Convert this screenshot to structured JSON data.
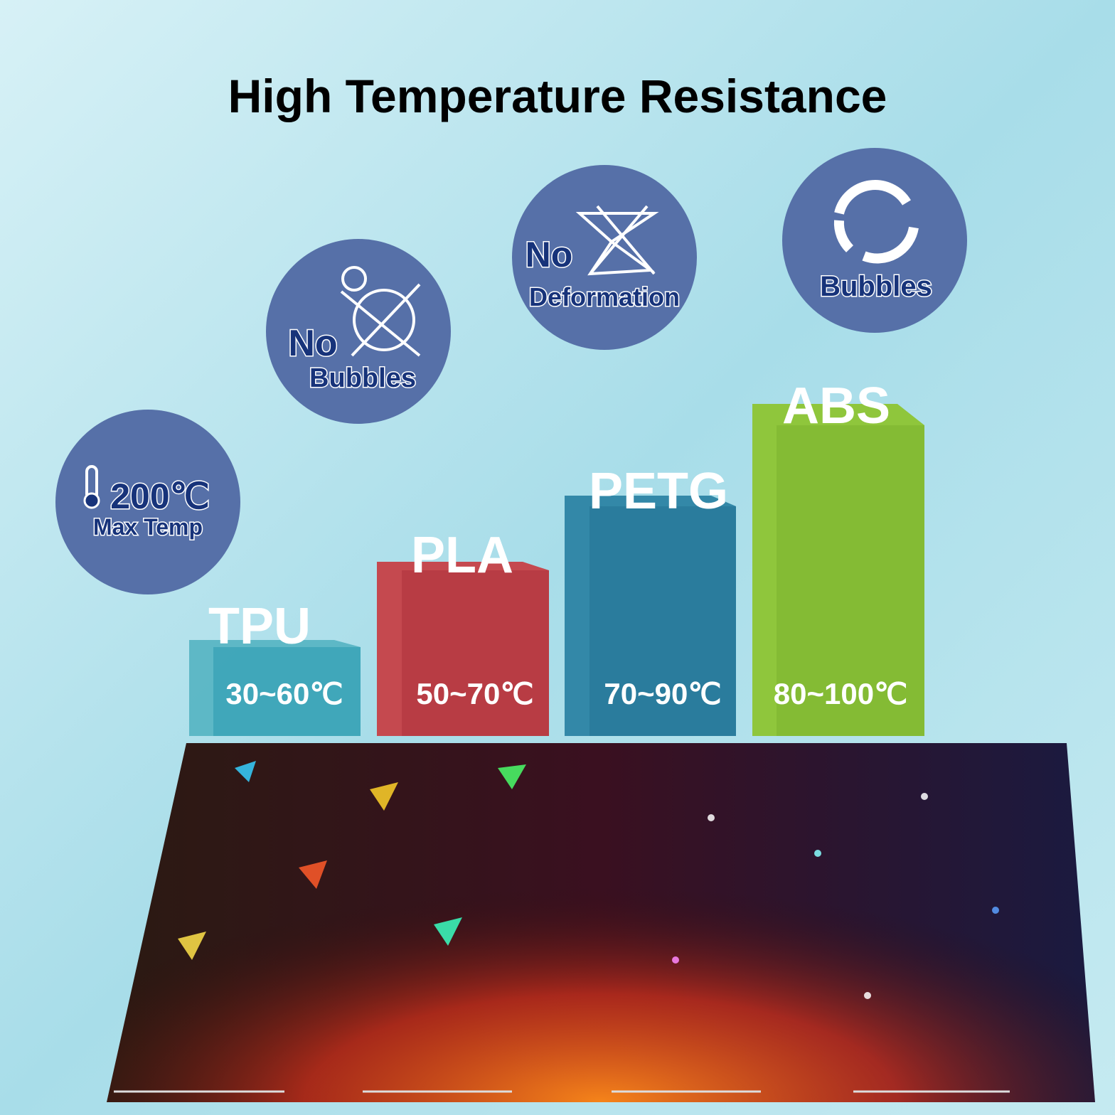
{
  "title": "High Temperature Resistance",
  "badges": [
    {
      "lines": [
        "200℃",
        "Max Temp"
      ]
    },
    {
      "lines": [
        "No",
        "Bubbles"
      ]
    },
    {
      "lines": [
        "No",
        "Deformation"
      ]
    },
    {
      "lines": [
        "Bubbles"
      ]
    }
  ],
  "materials": [
    {
      "name": "TPU",
      "range": "30~60℃"
    },
    {
      "name": "PLA",
      "range": "50~70℃"
    },
    {
      "name": "PETG",
      "range": "70~90℃"
    },
    {
      "name": "ABS",
      "range": "80~100℃"
    }
  ]
}
